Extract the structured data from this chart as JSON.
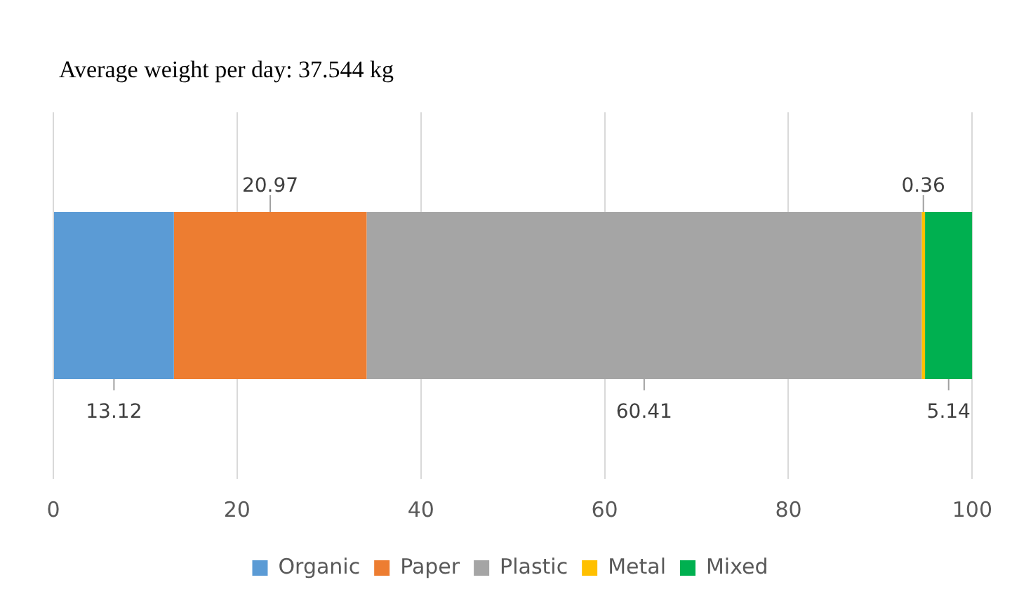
{
  "chart_data": {
    "type": "bar",
    "orientation": "horizontal",
    "stacked": true,
    "title": "Average weight per day: 37.544 kg",
    "categories": [
      null
    ],
    "series": [
      {
        "name": "Organic",
        "color": "#5b9bd5",
        "values": [
          13.12
        ]
      },
      {
        "name": "Paper",
        "color": "#ed7d31",
        "values": [
          20.97
        ]
      },
      {
        "name": "Plastic",
        "color": "#a5a5a5",
        "values": [
          60.41
        ]
      },
      {
        "name": "Metal",
        "color": "#ffc000",
        "values": [
          0.36
        ]
      },
      {
        "name": "Mixed",
        "color": "#00b050",
        "values": [
          5.14
        ]
      }
    ],
    "xlim": [
      0,
      100
    ],
    "xticks": [
      0,
      20,
      40,
      60,
      80,
      100
    ],
    "grid": "x",
    "tick_labels": "x",
    "legend": "bottom",
    "data_labels": true
  }
}
